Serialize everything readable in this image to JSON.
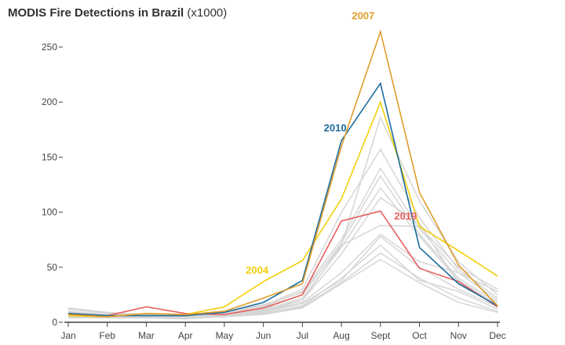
{
  "chart_data": {
    "type": "line",
    "title": "MODIS Fire Detections in Brazil",
    "title_units": "(x1000)",
    "xlabel": "",
    "ylabel": "",
    "categories": [
      "Jan",
      "Feb",
      "Mar",
      "Apr",
      "May",
      "Jun",
      "Jul",
      "Aug",
      "Sept",
      "Oct",
      "Nov",
      "Dec"
    ],
    "ylim": [
      0,
      250
    ],
    "yticks": [
      0,
      50,
      100,
      150,
      200,
      250
    ],
    "grid": false,
    "background_series": [
      [
        12,
        8,
        6,
        6,
        8,
        12,
        20,
        70,
        186,
        110,
        55,
        25
      ],
      [
        10,
        7,
        7,
        6,
        9,
        15,
        30,
        100,
        157,
        95,
        48,
        22
      ],
      [
        9,
        6,
        6,
        5,
        8,
        14,
        28,
        75,
        140,
        85,
        45,
        20
      ],
      [
        8,
        6,
        6,
        5,
        7,
        12,
        25,
        72,
        133,
        80,
        40,
        18
      ],
      [
        7,
        5,
        5,
        5,
        7,
        11,
        22,
        68,
        122,
        78,
        38,
        16
      ],
      [
        6,
        5,
        5,
        4,
        6,
        10,
        20,
        62,
        113,
        90,
        35,
        15
      ],
      [
        13,
        9,
        7,
        6,
        10,
        16,
        27,
        70,
        88,
        87,
        50,
        30
      ],
      [
        5,
        4,
        5,
        4,
        6,
        10,
        18,
        45,
        80,
        55,
        45,
        28
      ],
      [
        6,
        5,
        4,
        4,
        6,
        9,
        17,
        38,
        78,
        50,
        30,
        14
      ],
      [
        7,
        5,
        5,
        4,
        5,
        8,
        15,
        40,
        70,
        38,
        28,
        12
      ],
      [
        5,
        4,
        4,
        4,
        5,
        8,
        14,
        36,
        63,
        40,
        22,
        10
      ],
      [
        4,
        4,
        4,
        3,
        5,
        7,
        13,
        35,
        57,
        36,
        18,
        9
      ]
    ],
    "series": [
      {
        "name": "2019",
        "color": "#E8605E",
        "values": [
          8,
          6,
          14,
          8,
          7,
          13,
          25,
          92,
          101,
          49,
          37,
          14
        ]
      },
      {
        "name": "2004",
        "color": "#F2CF0A",
        "values": [
          6,
          5,
          8,
          7,
          14,
          37,
          56,
          112,
          200,
          87,
          65,
          42
        ]
      },
      {
        "name": "2010",
        "color": "#1D6C9C",
        "values": [
          8,
          6,
          6,
          6,
          9,
          18,
          38,
          165,
          217,
          68,
          35,
          15
        ]
      },
      {
        "name": "2007",
        "color": "#E09C2A",
        "values": [
          7,
          5,
          8,
          7,
          10,
          22,
          35,
          160,
          264,
          118,
          52,
          15
        ]
      }
    ],
    "background_color": "#D6D6D6"
  }
}
